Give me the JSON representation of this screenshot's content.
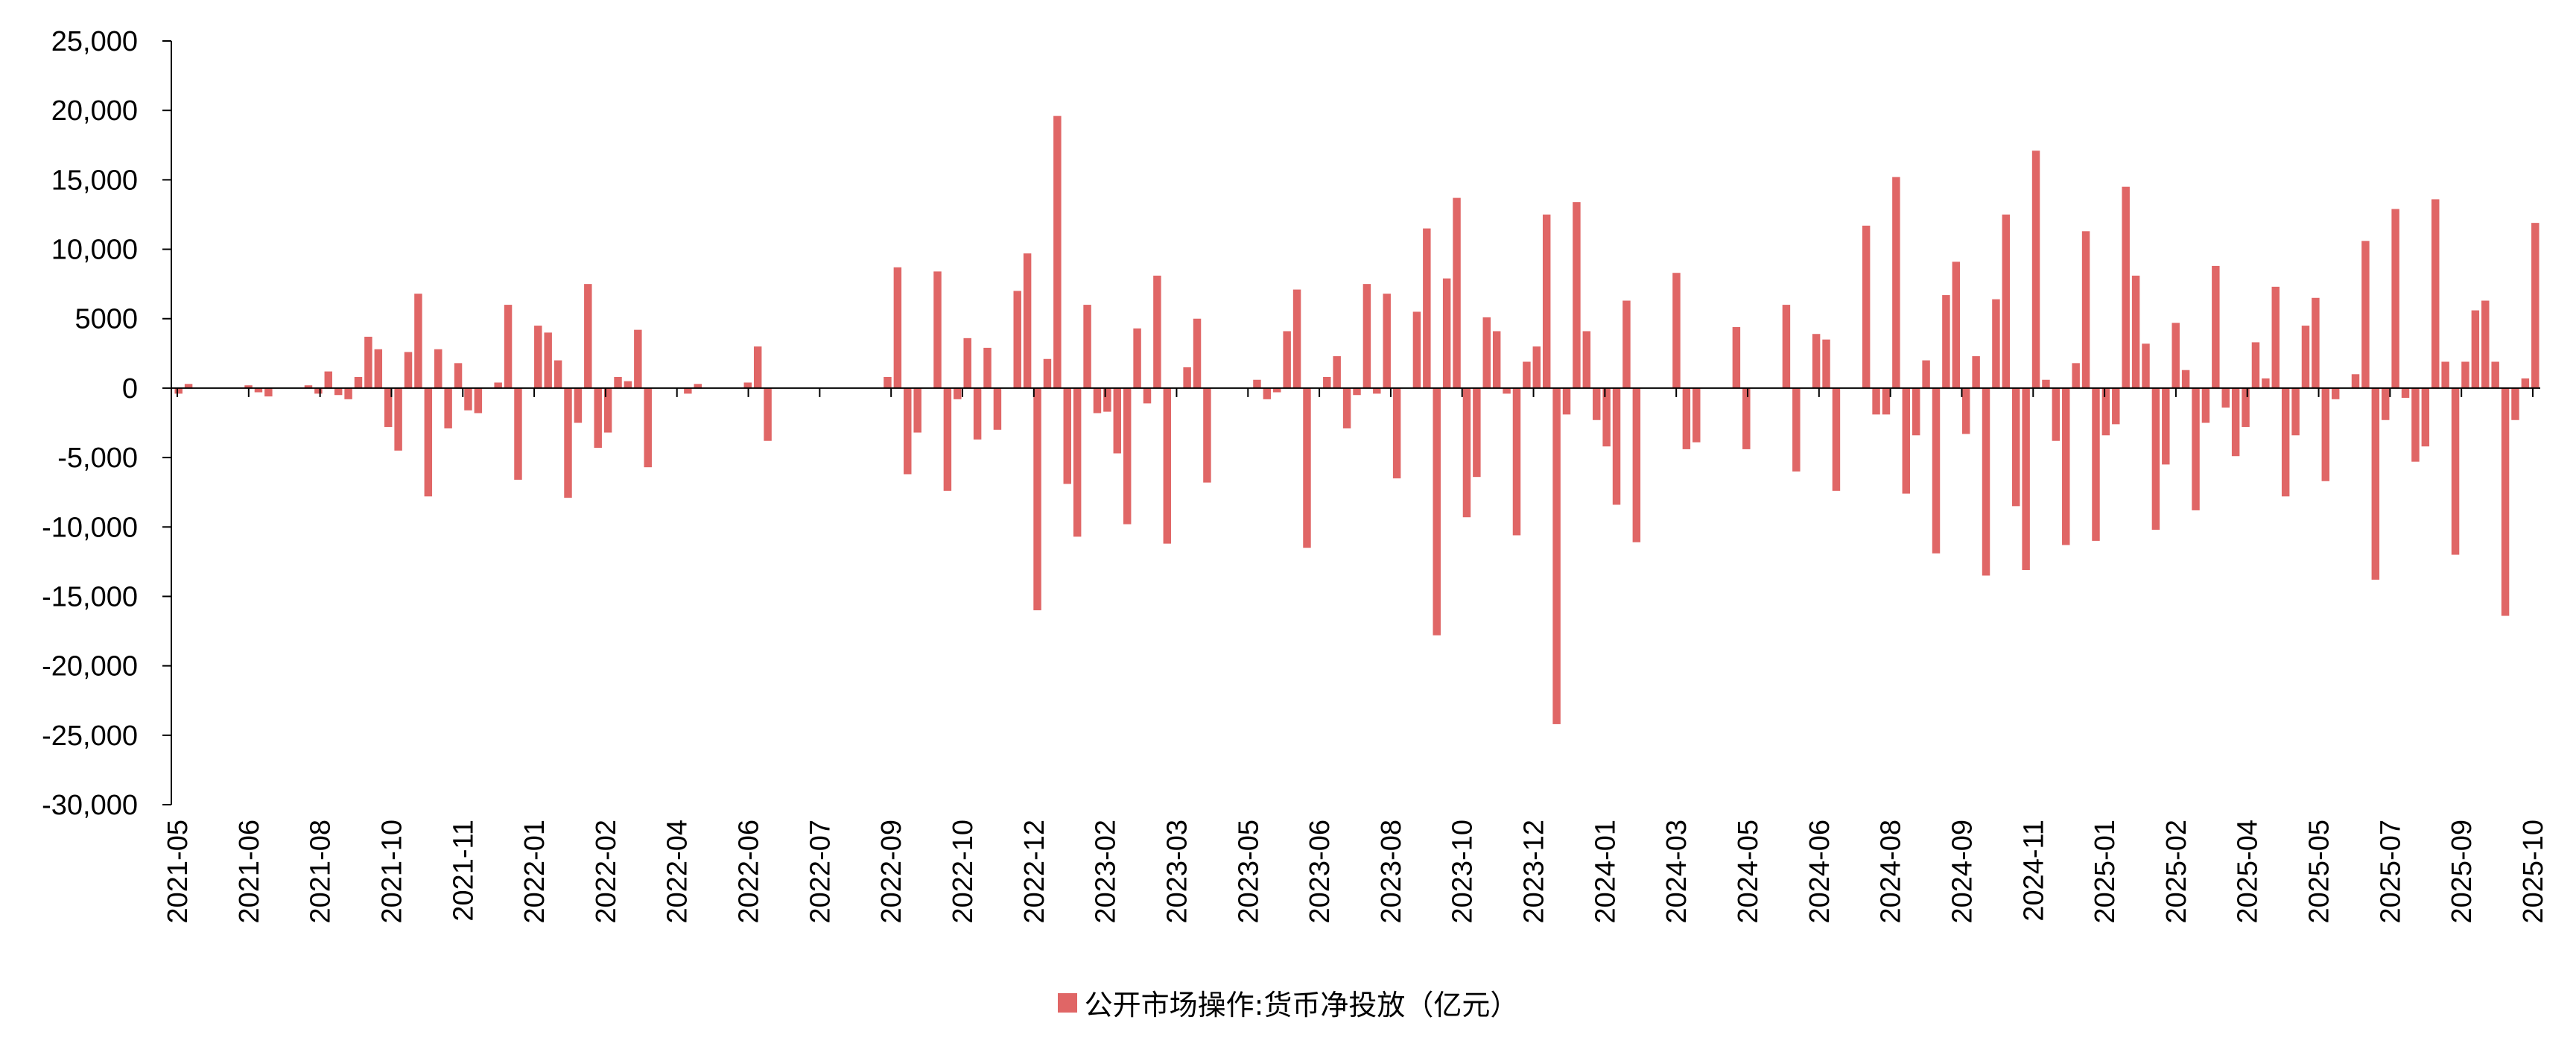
{
  "chart_data": {
    "type": "bar",
    "title": "",
    "xlabel": "",
    "ylabel": "",
    "ylim": [
      -30000,
      25000
    ],
    "y_ticks": [
      "25,000",
      "20,000",
      "15,000",
      "10,000",
      "5000",
      "0",
      "-5,000",
      "-10,000",
      "-15,000",
      "-20,000",
      "-25,000",
      "-30,000"
    ],
    "x_tick_labels": [
      "2021-05",
      "2021-06",
      "2021-08",
      "2021-10",
      "2021-11",
      "2022-01",
      "2022-02",
      "2022-04",
      "2022-06",
      "2022-07",
      "2022-09",
      "2022-10",
      "2022-12",
      "2023-02",
      "2023-03",
      "2023-05",
      "2023-06",
      "2023-08",
      "2023-10",
      "2023-12",
      "2024-01",
      "2024-03",
      "2024-05",
      "2024-06",
      "2024-08",
      "2024-09",
      "2024-11",
      "2025-01",
      "2025-02",
      "2025-04",
      "2025-05",
      "2025-07",
      "2025-09",
      "2025-10"
    ],
    "legend_position": "bottom",
    "grid": false,
    "color": "#E06666",
    "series": [
      {
        "name": "公开市场操作:货币净投放（亿元）",
        "values": [
          -400,
          300,
          0,
          0,
          0,
          0,
          0,
          200,
          -300,
          -600,
          0,
          0,
          0,
          200,
          -400,
          1200,
          -500,
          -800,
          800,
          3700,
          2800,
          -2800,
          -4500,
          2600,
          6800,
          -7800,
          2800,
          -2900,
          1800,
          -1600,
          -1800,
          0,
          400,
          6000,
          -6600,
          0,
          4500,
          4000,
          2000,
          -7900,
          -2500,
          7500,
          -4300,
          -3200,
          800,
          500,
          4200,
          -5700,
          0,
          0,
          0,
          -400,
          300,
          0,
          0,
          0,
          0,
          400,
          3000,
          -3800,
          0,
          0,
          0,
          0,
          0,
          0,
          0,
          0,
          0,
          0,
          0,
          800,
          8700,
          -6200,
          -3200,
          0,
          8400,
          -7400,
          -800,
          3600,
          -3700,
          2900,
          -3000,
          0,
          7000,
          9700,
          -16000,
          2100,
          19600,
          -6900,
          -10700,
          6000,
          -1800,
          -1700,
          -4700,
          -9800,
          4300,
          -1100,
          8100,
          -11200,
          0,
          1500,
          5000,
          -6800,
          0,
          0,
          0,
          0,
          600,
          -800,
          -300,
          4100,
          7100,
          -11500,
          0,
          800,
          2300,
          -2900,
          -500,
          7500,
          -400,
          6800,
          -6500,
          0,
          5500,
          11500,
          -17800,
          7900,
          13700,
          -9300,
          -6400,
          5100,
          4100,
          -400,
          -10600,
          1900,
          3000,
          12500,
          -24200,
          -1900,
          13400,
          4100,
          -2300,
          -4200,
          -8400,
          6300,
          -11100,
          0,
          0,
          0,
          8300,
          -4400,
          -3900,
          0,
          0,
          0,
          4400,
          -4400,
          0,
          0,
          0,
          6000,
          -6000,
          0,
          3900,
          3500,
          -7400,
          0,
          0,
          11700,
          -1900,
          -1900,
          15200,
          -7600,
          -3400,
          2000,
          -11900,
          6700,
          9100,
          -3300,
          2300,
          -13500,
          6400,
          12500,
          -8500,
          -13100,
          17100,
          600,
          -3800,
          -11300,
          1800,
          11300,
          -11000,
          -3400,
          -2600,
          14500,
          8100,
          3200,
          -10200,
          -5500,
          4700,
          1300,
          -8800,
          -2500,
          8800,
          -1400,
          -4900,
          -2800,
          3300,
          700,
          7300,
          -7800,
          -3400,
          4500,
          6500,
          -6700,
          -800,
          0,
          1000,
          10600,
          -13800,
          -2300,
          12900,
          -700,
          -5300,
          -4200,
          13600,
          1900,
          -12000,
          1900,
          5600,
          6300,
          1900,
          -16400,
          -2300,
          700,
          11900
        ]
      }
    ]
  }
}
